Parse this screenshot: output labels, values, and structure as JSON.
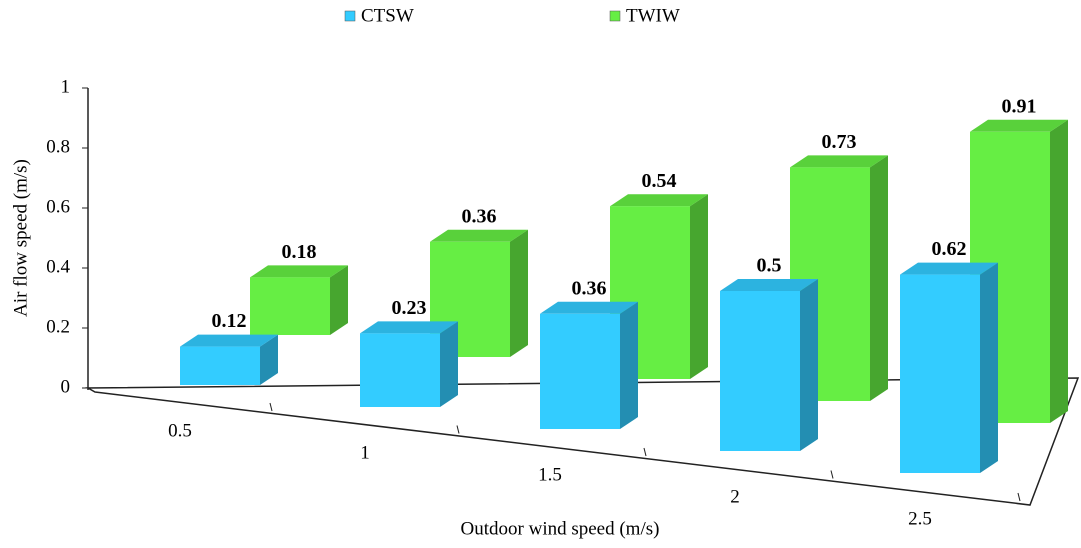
{
  "chart_data": {
    "type": "bar3d",
    "x_label": "Outdoor wind speed (m/s)",
    "y_label": "Air flow speed (m/s)",
    "categories": [
      "0.5",
      "1",
      "1.5",
      "2",
      "2.5"
    ],
    "series": [
      {
        "name": "CTSW",
        "color": "#33ccff",
        "values": [
          0.12,
          0.23,
          0.36,
          0.5,
          0.62
        ]
      },
      {
        "name": "TWIW",
        "color": "#66ee44",
        "values": [
          0.18,
          0.36,
          0.54,
          0.73,
          0.91
        ]
      }
    ],
    "ylim": [
      0,
      1
    ],
    "yticks": [
      0,
      0.2,
      0.4,
      0.6,
      0.8,
      1
    ],
    "legend": "top"
  }
}
